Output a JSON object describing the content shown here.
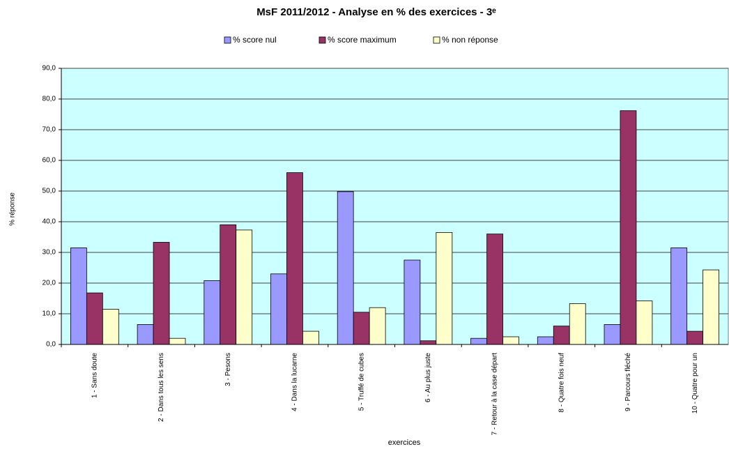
{
  "chart_data": {
    "type": "bar",
    "title": "MsF 2011/2012 - Analyse en % des exercices - 3ᵉ",
    "x_label": "exercices",
    "y_label": "% réponse",
    "categories": [
      "1 - Sans doute",
      "2 - Dans tous les sens",
      "3 - Pesons",
      "4 - Dans la lucarne",
      "5 - Truffé de cubes",
      "6 - Au plus juste",
      "7 - Retour à la case départ",
      "8 - Quatre fois neuf",
      "9 - Parcours fléché",
      "10 - Quatre pour un"
    ],
    "series": [
      {
        "name": "% score nul",
        "color": "#9999ff",
        "values": [
          31.5,
          6.5,
          20.8,
          23.0,
          49.8,
          27.5,
          2.0,
          2.5,
          6.5,
          31.5
        ]
      },
      {
        "name": "% score maximum",
        "color": "#993366",
        "values": [
          16.8,
          33.3,
          39.0,
          56.0,
          10.5,
          1.2,
          36.0,
          6.0,
          76.2,
          4.3
        ]
      },
      {
        "name": "% non réponse",
        "color": "#ffffcc",
        "values": [
          11.5,
          2.0,
          37.3,
          4.3,
          12.0,
          36.5,
          2.5,
          13.3,
          14.2,
          24.3
        ]
      }
    ],
    "ylim": [
      0,
      90
    ],
    "yticks": [
      {
        "value": 0,
        "label": "0,0"
      },
      {
        "value": 10,
        "label": "10,0"
      },
      {
        "value": 20,
        "label": "20,0"
      },
      {
        "value": 30,
        "label": "30,0"
      },
      {
        "value": 40,
        "label": "40,0"
      },
      {
        "value": 50,
        "label": "50,0"
      },
      {
        "value": 60,
        "label": "60,0"
      },
      {
        "value": 70,
        "label": "70,0"
      },
      {
        "value": 80,
        "label": "80,0"
      },
      {
        "value": 90,
        "label": "90,0"
      }
    ],
    "grid": true,
    "legend": "top"
  }
}
